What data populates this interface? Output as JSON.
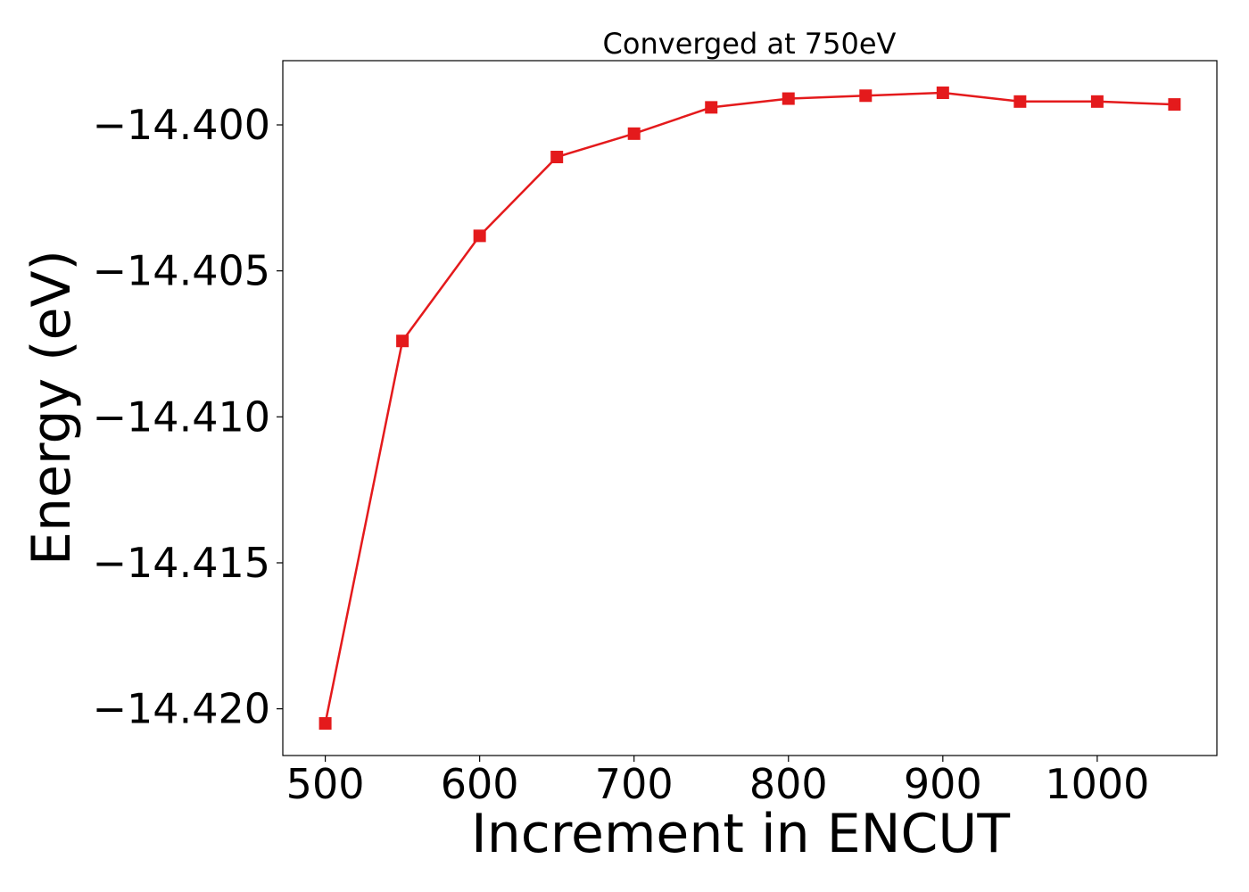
{
  "chart_data": {
    "type": "line",
    "title": "Converged at 750eV",
    "xlabel": "Increment in ENCUT",
    "ylabel": "Energy (eV)",
    "x": [
      500,
      550,
      600,
      650,
      700,
      750,
      800,
      850,
      900,
      950,
      1000,
      1050
    ],
    "series": [
      {
        "values": [
          -14.4205,
          -14.4074,
          -14.4038,
          -14.4011,
          -14.4003,
          -14.3994,
          -14.3991,
          -14.399,
          -14.3989,
          -14.3992,
          -14.3992,
          -14.3993
        ],
        "color": "#e41a1c",
        "marker": "square"
      }
    ],
    "xticks": [
      500,
      600,
      700,
      800,
      900,
      1000
    ],
    "xtick_labels": [
      "500",
      "600",
      "700",
      "800",
      "900",
      "1000"
    ],
    "yticks": [
      -14.4,
      -14.405,
      -14.41,
      -14.415,
      -14.42
    ],
    "ytick_labels": [
      "−14.400",
      "−14.405",
      "−14.410",
      "−14.415",
      "−14.420"
    ],
    "xlim": [
      472.5,
      1077.5
    ],
    "ylim": [
      -14.4216,
      -14.3978
    ],
    "grid": false,
    "legend": "none"
  }
}
